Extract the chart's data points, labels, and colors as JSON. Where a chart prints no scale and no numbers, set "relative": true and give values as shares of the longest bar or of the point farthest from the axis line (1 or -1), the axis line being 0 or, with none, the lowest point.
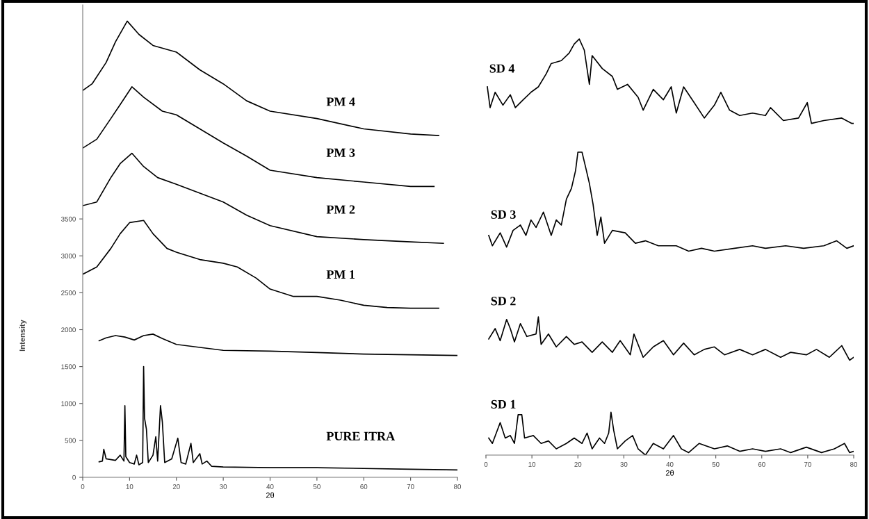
{
  "chart_data": [
    {
      "type": "line",
      "xlabel": "2θ",
      "ylabel": "Intensity",
      "xlim": [
        0,
        80
      ],
      "xticks": [
        0,
        10,
        20,
        30,
        40,
        50,
        60,
        70,
        80
      ],
      "ylim": [
        0,
        6400
      ],
      "yticks": [
        0,
        500,
        1000,
        1500,
        2000,
        2500,
        3000,
        3500
      ],
      "grid": false,
      "marker": "none",
      "line_style": "solid",
      "series": [
        {
          "name": "PM 4",
          "color": "#000000",
          "x": [
            0,
            2,
            5,
            7,
            9.5,
            12,
            15,
            20,
            25,
            30,
            35,
            40,
            50,
            60,
            70,
            76
          ],
          "values": [
            5240,
            5330,
            5620,
            5900,
            6180,
            6000,
            5850,
            5760,
            5520,
            5330,
            5100,
            4960,
            4860,
            4720,
            4650,
            4630
          ]
        },
        {
          "name": "PM 3",
          "color": "#000000",
          "x": [
            0,
            3,
            6,
            8,
            10.5,
            13,
            17,
            20,
            25,
            30,
            35,
            40,
            50,
            60,
            70,
            75
          ],
          "values": [
            4460,
            4580,
            4860,
            5050,
            5290,
            5150,
            4960,
            4910,
            4720,
            4530,
            4350,
            4160,
            4060,
            4000,
            3940,
            3940
          ]
        },
        {
          "name": "PM 2",
          "color": "#000000",
          "x": [
            0,
            3,
            6,
            8,
            10.5,
            13,
            16,
            20,
            25,
            30,
            35,
            40,
            50,
            60,
            70,
            77
          ],
          "values": [
            3680,
            3730,
            4060,
            4250,
            4390,
            4210,
            4060,
            3970,
            3850,
            3730,
            3550,
            3410,
            3260,
            3220,
            3190,
            3170
          ]
        },
        {
          "name": "PM 1",
          "color": "#000000",
          "x": [
            0,
            3,
            6,
            8,
            10,
            13,
            15,
            18,
            20,
            25,
            30,
            33,
            37,
            40,
            45,
            50,
            55,
            60,
            65,
            70,
            76
          ],
          "values": [
            2750,
            2850,
            3100,
            3300,
            3450,
            3480,
            3300,
            3100,
            3050,
            2950,
            2900,
            2850,
            2700,
            2550,
            2450,
            2450,
            2400,
            2330,
            2300,
            2290,
            2290
          ]
        },
        {
          "color": "#000000",
          "x": [
            3.5,
            5,
            7,
            9,
            11,
            13,
            15,
            17,
            20,
            25,
            30,
            40,
            50,
            60,
            70,
            80
          ],
          "values": [
            1850,
            1890,
            1920,
            1900,
            1860,
            1920,
            1940,
            1880,
            1800,
            1760,
            1720,
            1710,
            1690,
            1670,
            1660,
            1650
          ]
        },
        {
          "name": "PURE ITRA",
          "color": "#000000",
          "x": [
            3.5,
            4.2,
            4.5,
            5,
            7,
            8,
            8.8,
            9.0,
            9.2,
            10,
            11,
            11.5,
            12,
            12.8,
            13.0,
            13.2,
            13.6,
            14,
            15,
            15.6,
            16,
            16.6,
            17,
            17.5,
            19,
            20.3,
            21,
            22,
            23.1,
            23.6,
            25,
            25.5,
            26.5,
            27.5,
            30,
            40,
            50,
            60,
            70,
            80
          ],
          "values": [
            210,
            220,
            380,
            250,
            230,
            300,
            220,
            970,
            280,
            200,
            180,
            300,
            170,
            200,
            1500,
            800,
            650,
            200,
            300,
            550,
            220,
            970,
            750,
            200,
            250,
            530,
            200,
            180,
            460,
            200,
            320,
            180,
            220,
            150,
            140,
            130,
            130,
            120,
            110,
            100
          ]
        }
      ]
    },
    {
      "type": "line",
      "xlabel": "2θ",
      "relative": true,
      "xlim": [
        0,
        80
      ],
      "xticks": [
        0,
        10,
        20,
        30,
        40,
        50,
        60,
        70,
        80
      ],
      "grid": false,
      "marker": "none",
      "line_style": "solid",
      "series": [
        {
          "name": "SD 4",
          "color": "#000000",
          "x": [
            0.3,
            0.9,
            2.0,
            3.7,
            5.3,
            6.4,
            8.1,
            9.8,
            11.4,
            13.1,
            14.2,
            16.4,
            18.1,
            19.2,
            20.3,
            21.4,
            22.5,
            23.1,
            25.3,
            27.5,
            28.6,
            30.8,
            33.1,
            34.2,
            36.4,
            38.6,
            40.3,
            41.4,
            43.0,
            45.3,
            47.5,
            49.7,
            51.1,
            53.0,
            55.2,
            58.0,
            60.8,
            61.9,
            64.7,
            68.0,
            69.9,
            70.8,
            73.5,
            77.4,
            79.6,
            80
          ],
          "values": [
            0.885,
            0.835,
            0.872,
            0.841,
            0.866,
            0.835,
            0.854,
            0.872,
            0.885,
            0.916,
            0.941,
            0.948,
            0.966,
            0.988,
            1.0,
            0.973,
            0.891,
            0.96,
            0.929,
            0.91,
            0.879,
            0.891,
            0.86,
            0.829,
            0.879,
            0.854,
            0.885,
            0.822,
            0.885,
            0.847,
            0.81,
            0.841,
            0.872,
            0.829,
            0.816,
            0.822,
            0.816,
            0.835,
            0.804,
            0.81,
            0.847,
            0.797,
            0.804,
            0.81,
            0.797,
            0.797
          ]
        },
        {
          "name": "SD 3",
          "color": "#000000",
          "x": [
            0.6,
            1.4,
            3.1,
            4.5,
            5.9,
            7.5,
            8.7,
            9.8,
            10.9,
            12.5,
            14.2,
            15.3,
            16.4,
            17.5,
            18.6,
            19.5,
            20.0,
            20.9,
            21.7,
            22.5,
            23.3,
            24.2,
            25.0,
            25.8,
            27.5,
            30.3,
            32.5,
            34.7,
            37.5,
            41.4,
            44.1,
            46.9,
            49.7,
            54.1,
            58.0,
            60.8,
            65.2,
            69.1,
            73.5,
            76.3,
            78.5,
            80
          ],
          "values": [
            0.528,
            0.503,
            0.534,
            0.5,
            0.54,
            0.553,
            0.528,
            0.565,
            0.547,
            0.584,
            0.528,
            0.565,
            0.553,
            0.615,
            0.641,
            0.684,
            0.728,
            0.728,
            0.691,
            0.653,
            0.603,
            0.528,
            0.572,
            0.509,
            0.54,
            0.534,
            0.509,
            0.515,
            0.503,
            0.503,
            0.49,
            0.497,
            0.49,
            0.497,
            0.503,
            0.497,
            0.503,
            0.497,
            0.503,
            0.515,
            0.497,
            0.503
          ]
        },
        {
          "name": "SD 2",
          "color": "#000000",
          "x": [
            0.6,
            2.0,
            3.1,
            4.5,
            5.3,
            6.2,
            7.5,
            8.9,
            10.9,
            11.4,
            12.0,
            13.6,
            15.3,
            17.5,
            19.2,
            20.9,
            23.1,
            25.3,
            27.5,
            29.2,
            31.4,
            32.2,
            34.2,
            36.4,
            38.6,
            40.8,
            43.0,
            45.3,
            47.5,
            49.7,
            51.9,
            55.2,
            58.0,
            60.8,
            64.1,
            66.3,
            69.7,
            71.9,
            74.7,
            77.4,
            79.1,
            80
          ],
          "values": [
            0.279,
            0.304,
            0.275,
            0.326,
            0.304,
            0.272,
            0.316,
            0.285,
            0.291,
            0.332,
            0.266,
            0.291,
            0.26,
            0.285,
            0.266,
            0.272,
            0.247,
            0.272,
            0.247,
            0.275,
            0.241,
            0.291,
            0.235,
            0.26,
            0.275,
            0.241,
            0.269,
            0.241,
            0.254,
            0.26,
            0.241,
            0.254,
            0.241,
            0.254,
            0.235,
            0.247,
            0.241,
            0.254,
            0.235,
            0.263,
            0.228,
            0.235
          ]
        },
        {
          "name": "SD 1",
          "color": "#000000",
          "x": [
            0.6,
            1.4,
            3.1,
            4.2,
            5.3,
            6.2,
            7.0,
            7.8,
            8.4,
            10.3,
            12.0,
            13.6,
            15.3,
            17.5,
            19.2,
            20.9,
            22.0,
            23.1,
            24.7,
            25.8,
            26.7,
            27.2,
            27.8,
            28.6,
            30.3,
            31.9,
            33.1,
            34.7,
            36.4,
            38.6,
            40.8,
            42.5,
            44.1,
            46.4,
            49.7,
            52.5,
            55.2,
            58.0,
            60.8,
            64.1,
            66.3,
            69.7,
            73.0,
            75.8,
            78.0,
            79.1,
            80
          ],
          "values": [
            0.041,
            0.028,
            0.078,
            0.041,
            0.047,
            0.028,
            0.097,
            0.097,
            0.041,
            0.047,
            0.028,
            0.034,
            0.015,
            0.028,
            0.041,
            0.028,
            0.053,
            0.015,
            0.041,
            0.028,
            0.053,
            0.103,
            0.059,
            0.015,
            0.034,
            0.047,
            0.015,
            0.0,
            0.028,
            0.015,
            0.047,
            0.015,
            0.006,
            0.028,
            0.015,
            0.022,
            0.009,
            0.015,
            0.009,
            0.015,
            0.006,
            0.019,
            0.006,
            0.015,
            0.028,
            0.006,
            0.009
          ]
        }
      ]
    }
  ]
}
